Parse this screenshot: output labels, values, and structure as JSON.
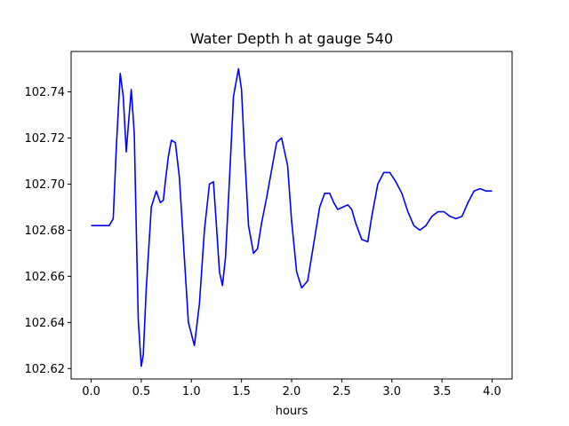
{
  "chart_data": {
    "type": "line",
    "title": "Water Depth h at gauge 540",
    "xlabel": "hours",
    "ylabel": "",
    "xlim": [
      -0.2,
      4.2
    ],
    "ylim": [
      102.6155,
      102.7575
    ],
    "xticks": [
      0.0,
      0.5,
      1.0,
      1.5,
      2.0,
      2.5,
      3.0,
      3.5,
      4.0
    ],
    "xtick_labels": [
      "0.0",
      "0.5",
      "1.0",
      "1.5",
      "2.0",
      "2.5",
      "3.0",
      "3.5",
      "4.0"
    ],
    "yticks": [
      102.62,
      102.64,
      102.66,
      102.68,
      102.7,
      102.72,
      102.74
    ],
    "ytick_labels": [
      "102.62",
      "102.64",
      "102.66",
      "102.68",
      "102.70",
      "102.72",
      "102.74"
    ],
    "grid": false,
    "series": [
      {
        "color": "#0000ff",
        "x": [
          0.0,
          0.1,
          0.18,
          0.22,
          0.25,
          0.29,
          0.32,
          0.35,
          0.37,
          0.4,
          0.43,
          0.45,
          0.47,
          0.5,
          0.52,
          0.55,
          0.6,
          0.65,
          0.69,
          0.72,
          0.74,
          0.77,
          0.8,
          0.84,
          0.88,
          0.92,
          0.97,
          1.03,
          1.08,
          1.13,
          1.18,
          1.22,
          1.25,
          1.28,
          1.31,
          1.34,
          1.38,
          1.42,
          1.47,
          1.5,
          1.53,
          1.57,
          1.62,
          1.66,
          1.7,
          1.75,
          1.8,
          1.85,
          1.9,
          1.96,
          2.0,
          2.05,
          2.1,
          2.16,
          2.22,
          2.28,
          2.33,
          2.38,
          2.42,
          2.46,
          2.51,
          2.56,
          2.6,
          2.64,
          2.7,
          2.76,
          2.8,
          2.86,
          2.92,
          2.98,
          3.04,
          3.1,
          3.16,
          3.22,
          3.28,
          3.34,
          3.4,
          3.46,
          3.52,
          3.58,
          3.64,
          3.7,
          3.76,
          3.82,
          3.88,
          3.94,
          4.0
        ],
        "y": [
          102.682,
          102.682,
          102.682,
          102.685,
          102.715,
          102.748,
          102.738,
          102.714,
          102.725,
          102.741,
          102.722,
          102.681,
          102.641,
          102.621,
          102.626,
          102.655,
          102.69,
          102.697,
          102.692,
          102.693,
          102.701,
          102.712,
          102.719,
          102.718,
          102.703,
          102.675,
          102.64,
          102.63,
          102.648,
          102.68,
          102.7,
          102.701,
          102.682,
          102.662,
          102.656,
          102.668,
          102.702,
          102.738,
          102.75,
          102.741,
          102.714,
          102.682,
          102.67,
          102.672,
          102.683,
          102.694,
          102.706,
          102.718,
          102.72,
          102.708,
          102.684,
          102.662,
          102.655,
          102.658,
          102.674,
          102.69,
          102.696,
          102.696,
          102.692,
          102.689,
          102.69,
          102.691,
          102.689,
          102.683,
          102.676,
          102.675,
          102.686,
          102.7,
          102.705,
          102.705,
          102.701,
          102.696,
          102.688,
          102.682,
          102.68,
          102.682,
          102.686,
          102.688,
          102.688,
          102.686,
          102.685,
          102.686,
          102.692,
          102.697,
          102.698,
          102.697,
          102.697
        ]
      }
    ]
  }
}
